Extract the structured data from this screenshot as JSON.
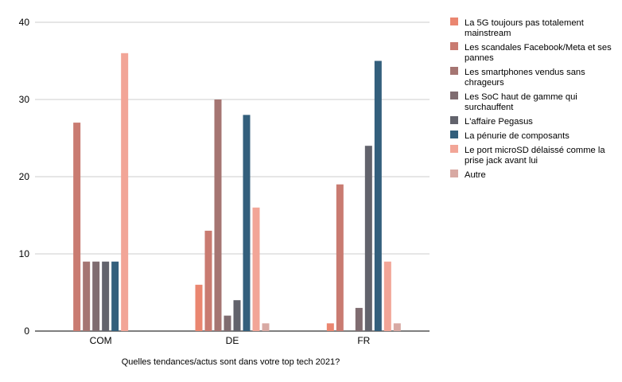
{
  "chart_data": {
    "type": "bar",
    "categories": [
      "COM",
      "DE",
      "FR"
    ],
    "series": [
      {
        "name": "La 5G toujours pas totalement mainstream",
        "color": "#ea8670",
        "values": [
          0,
          6,
          1
        ]
      },
      {
        "name": "Les scandales Facebook/Meta et ses pannes",
        "color": "#c97b71",
        "values": [
          27,
          13,
          19
        ]
      },
      {
        "name": "Les smartphones vendus sans chrageurs",
        "color": "#a57572",
        "values": [
          9,
          30,
          0
        ]
      },
      {
        "name": "Les SoC haut de gamme qui surchauffent",
        "color": "#7f6c70",
        "values": [
          9,
          2,
          3
        ]
      },
      {
        "name": "L'affaire Pegasus",
        "color": "#62636c",
        "values": [
          9,
          4,
          24
        ]
      },
      {
        "name": "La pénurie de composants",
        "color": "#335f7c",
        "values": [
          9,
          28,
          35
        ]
      },
      {
        "name": "Le port microSD délaissé comme la prise jack avant lui",
        "color": "#f2a597",
        "values": [
          36,
          16,
          9
        ]
      },
      {
        "name": "Autre",
        "color": "#d8a9a3",
        "values": [
          0,
          1,
          1
        ]
      }
    ],
    "xlabel": "Quelles tendances/actus sont dans votre top tech 2021?",
    "ylabel": "",
    "ylim": [
      0,
      40
    ],
    "yticks": [
      "0",
      "10",
      "20",
      "30",
      "40"
    ],
    "grid": true,
    "legend_position": "right"
  }
}
